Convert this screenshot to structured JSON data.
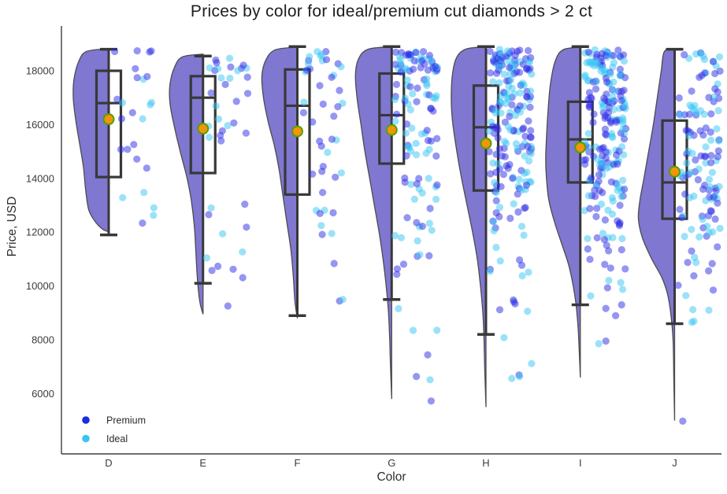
{
  "title": "Prices by color for ideal/premium cut diamonds > 2 ct",
  "chart_data": {
    "type": "raincloud (half-violin + boxplot + jittered scatter + mean dot)",
    "title": "Prices by color for ideal/premium cut diamonds > 2 ct",
    "xlabel": "Color",
    "ylabel": "Price, USD",
    "categories": [
      "D",
      "E",
      "F",
      "G",
      "H",
      "I",
      "J"
    ],
    "y_ticks": [
      6000,
      8000,
      10000,
      12000,
      14000,
      16000,
      18000
    ],
    "ylim": [
      3800,
      19400
    ],
    "grid": false,
    "legend": {
      "position": "lower left",
      "entries": [
        {
          "label": "Premium",
          "color": "#1c2ce0"
        },
        {
          "label": "Ideal",
          "color": "#38c5f3"
        }
      ]
    },
    "colors": {
      "violin_fill": "#8077d1",
      "violin_edge": "#4c4c4c",
      "box_edge": "#383838",
      "mean_fill": "#f0950c",
      "mean_edge": "#53a000",
      "premium_point": "#2b2be6",
      "ideal_point": "#38c5f3",
      "point_opacity": 0.5,
      "axis_spine": "#3f3f3f"
    },
    "premium_share": 0.55,
    "series": [
      {
        "category": "D",
        "mean": 16200,
        "n_points": 25,
        "box": {
          "whisker_low": 11900,
          "q1": 14050,
          "median": 16800,
          "q3": 18000,
          "whisker_high": 18800
        },
        "point_strata": [
          [
            17600,
            18750,
            8
          ],
          [
            15600,
            17500,
            7
          ],
          [
            13900,
            15500,
            5
          ],
          [
            11800,
            13600,
            5
          ]
        ],
        "violin_profile": [
          [
            18820,
            0
          ],
          [
            18720,
            28
          ],
          [
            18350,
            38
          ],
          [
            17700,
            44
          ],
          [
            17000,
            45
          ],
          [
            16200,
            42
          ],
          [
            15300,
            37
          ],
          [
            14400,
            32
          ],
          [
            13500,
            29
          ],
          [
            12800,
            25
          ],
          [
            12350,
            16
          ],
          [
            12100,
            7
          ],
          [
            12020,
            0
          ]
        ]
      },
      {
        "category": "E",
        "mean": 15850,
        "n_points": 40,
        "box": {
          "whisker_low": 10100,
          "q1": 14200,
          "median": 17000,
          "q3": 17800,
          "whisker_high": 18550
        },
        "point_strata": [
          [
            17900,
            18500,
            11
          ],
          [
            16200,
            17800,
            9
          ],
          [
            14000,
            16100,
            8
          ],
          [
            11900,
            13300,
            5
          ],
          [
            10300,
            11300,
            6
          ],
          [
            9000,
            9300,
            1
          ]
        ],
        "violin_profile": [
          [
            18620,
            0
          ],
          [
            18520,
            26
          ],
          [
            18150,
            36
          ],
          [
            17500,
            42
          ],
          [
            16800,
            42
          ],
          [
            16000,
            37
          ],
          [
            15000,
            29
          ],
          [
            14100,
            21
          ],
          [
            13200,
            15
          ],
          [
            12200,
            11
          ],
          [
            11200,
            9
          ],
          [
            10200,
            7
          ],
          [
            9400,
            4
          ],
          [
            8950,
            0
          ]
        ]
      },
      {
        "category": "F",
        "mean": 15750,
        "n_points": 46,
        "box": {
          "whisker_low": 8900,
          "q1": 13400,
          "median": 16700,
          "q3": 18050,
          "whisker_high": 18900
        },
        "point_strata": [
          [
            17700,
            18800,
            16
          ],
          [
            16300,
            17600,
            8
          ],
          [
            14400,
            16200,
            7
          ],
          [
            13100,
            14400,
            5
          ],
          [
            11900,
            13100,
            7
          ],
          [
            10800,
            11200,
            1
          ],
          [
            9300,
            9700,
            2
          ]
        ],
        "violin_profile": [
          [
            18880,
            0
          ],
          [
            18780,
            28
          ],
          [
            18400,
            40
          ],
          [
            17800,
            45
          ],
          [
            17000,
            43
          ],
          [
            16100,
            37
          ],
          [
            15200,
            29
          ],
          [
            14300,
            23
          ],
          [
            13300,
            18
          ],
          [
            12300,
            13
          ],
          [
            11300,
            8
          ],
          [
            10300,
            5
          ],
          [
            9400,
            3
          ],
          [
            8800,
            0
          ]
        ]
      },
      {
        "category": "G",
        "mean": 15800,
        "n_points": 123,
        "box": {
          "whisker_low": 9500,
          "q1": 14550,
          "median": 16350,
          "q3": 17900,
          "whisker_high": 18900
        },
        "point_strata": [
          [
            17900,
            18800,
            42
          ],
          [
            16300,
            17800,
            26
          ],
          [
            14500,
            16200,
            20
          ],
          [
            13000,
            14400,
            12
          ],
          [
            11400,
            12900,
            10
          ],
          [
            9900,
            11300,
            6
          ],
          [
            8300,
            9500,
            3
          ],
          [
            5700,
            8000,
            4
          ]
        ],
        "violin_profile": [
          [
            18900,
            0
          ],
          [
            18800,
            30
          ],
          [
            18450,
            42
          ],
          [
            17850,
            46
          ],
          [
            17000,
            44
          ],
          [
            16000,
            39
          ],
          [
            15000,
            34
          ],
          [
            14000,
            28
          ],
          [
            13000,
            22
          ],
          [
            12000,
            16
          ],
          [
            11000,
            11
          ],
          [
            10000,
            7
          ],
          [
            9000,
            4
          ],
          [
            8000,
            2.5
          ],
          [
            7000,
            1.5
          ],
          [
            5800,
            0
          ]
        ]
      },
      {
        "category": "H",
        "mean": 15300,
        "n_points": 203,
        "box": {
          "whisker_low": 8200,
          "q1": 13550,
          "median": 15900,
          "q3": 17450,
          "whisker_high": 18900
        },
        "point_strata": [
          [
            17800,
            18800,
            55
          ],
          [
            16300,
            17700,
            45
          ],
          [
            14800,
            16200,
            40
          ],
          [
            13300,
            14700,
            30
          ],
          [
            11800,
            13200,
            15
          ],
          [
            10200,
            11700,
            8
          ],
          [
            8500,
            10100,
            5
          ],
          [
            6100,
            8300,
            5
          ]
        ],
        "violin_profile": [
          [
            18900,
            0
          ],
          [
            18800,
            26
          ],
          [
            18450,
            38
          ],
          [
            17750,
            43
          ],
          [
            16800,
            44
          ],
          [
            16000,
            42
          ],
          [
            15000,
            37
          ],
          [
            14000,
            31
          ],
          [
            13000,
            24
          ],
          [
            12000,
            17
          ],
          [
            11000,
            11
          ],
          [
            10000,
            7
          ],
          [
            9000,
            4
          ],
          [
            8000,
            2.5
          ],
          [
            6800,
            1.5
          ],
          [
            5500,
            0
          ]
        ]
      },
      {
        "category": "I",
        "mean": 15150,
        "n_points": 222,
        "box": {
          "whisker_low": 9300,
          "q1": 13850,
          "median": 15450,
          "q3": 16850,
          "whisker_high": 18900
        },
        "point_strata": [
          [
            17500,
            18800,
            58
          ],
          [
            16000,
            17400,
            52
          ],
          [
            14300,
            15900,
            48
          ],
          [
            12800,
            14200,
            32
          ],
          [
            11300,
            12700,
            18
          ],
          [
            9800,
            11200,
            8
          ],
          [
            8700,
            9700,
            4
          ],
          [
            7400,
            8600,
            2
          ]
        ],
        "violin_profile": [
          [
            18880,
            0
          ],
          [
            18780,
            22
          ],
          [
            18350,
            32
          ],
          [
            17500,
            38
          ],
          [
            16500,
            41
          ],
          [
            15500,
            43
          ],
          [
            14700,
            44
          ],
          [
            14000,
            43
          ],
          [
            13200,
            40
          ],
          [
            12400,
            33
          ],
          [
            11600,
            24
          ],
          [
            10800,
            15
          ],
          [
            10000,
            9
          ],
          [
            9200,
            5
          ],
          [
            8300,
            2.5
          ],
          [
            6600,
            0
          ]
        ]
      },
      {
        "category": "J",
        "mean": 14250,
        "n_points": 130,
        "box": {
          "whisker_low": 8600,
          "q1": 12500,
          "median": 13850,
          "q3": 16150,
          "whisker_high": 18800
        },
        "point_strata": [
          [
            17500,
            18700,
            18
          ],
          [
            16000,
            17400,
            22
          ],
          [
            14500,
            15900,
            28
          ],
          [
            13000,
            14400,
            28
          ],
          [
            11600,
            12900,
            18
          ],
          [
            10300,
            11500,
            8
          ],
          [
            9000,
            10200,
            5
          ],
          [
            8600,
            8900,
            2
          ],
          [
            4950,
            5050,
            1
          ]
        ],
        "violin_profile": [
          [
            18820,
            0
          ],
          [
            18720,
            13
          ],
          [
            18000,
            17
          ],
          [
            17000,
            22
          ],
          [
            16000,
            27
          ],
          [
            15000,
            33
          ],
          [
            14000,
            39
          ],
          [
            13200,
            44
          ],
          [
            12500,
            46
          ],
          [
            11800,
            41
          ],
          [
            11000,
            29
          ],
          [
            10300,
            16
          ],
          [
            9700,
            9
          ],
          [
            9000,
            5
          ],
          [
            8000,
            2
          ],
          [
            6500,
            1
          ],
          [
            5000,
            0
          ]
        ]
      }
    ]
  }
}
